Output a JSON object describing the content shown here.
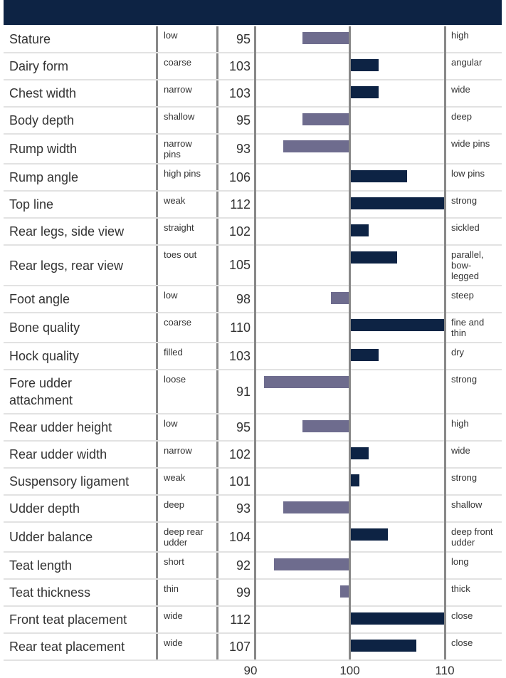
{
  "chart_data": {
    "type": "bar",
    "categories": [
      "Stature",
      "Dairy form",
      "Chest width",
      "Body depth",
      "Rump width",
      "Rump angle",
      "Top line",
      "Rear legs, side view",
      "Rear legs, rear view",
      "Foot angle",
      "Bone quality",
      "Hock quality",
      "Fore udder attachment",
      "Rear udder height",
      "Rear udder width",
      "Suspensory ligament",
      "Udder depth",
      "Udder balance",
      "Teat length",
      "Teat thickness",
      "Front teat placement",
      "Rear teat placement"
    ],
    "low_labels": [
      "low",
      "coarse",
      "narrow",
      "shallow",
      "narrow pins",
      "high pins",
      "weak",
      "straight",
      "toes out",
      "low",
      "coarse",
      "filled",
      "loose",
      "low",
      "narrow",
      "weak",
      "deep",
      "deep rear udder",
      "short",
      "thin",
      "wide",
      "wide"
    ],
    "high_labels": [
      "high",
      "angular",
      "wide",
      "deep",
      "wide pins",
      "low pins",
      "strong",
      "sickled",
      "parallel, bow-legged",
      "steep",
      "fine and thin",
      "dry",
      "strong",
      "high",
      "wide",
      "strong",
      "shallow",
      "deep front udder",
      "long",
      "thick",
      "close",
      "close"
    ],
    "values": [
      95,
      103,
      103,
      95,
      93,
      106,
      112,
      102,
      105,
      98,
      110,
      103,
      91,
      95,
      102,
      101,
      93,
      104,
      92,
      99,
      112,
      107
    ],
    "xlim": [
      90,
      110
    ],
    "xticks": [
      90,
      100,
      110
    ],
    "positive_color": "#0d2344",
    "negative_color": "#6e6c8e",
    "header_color": "#0d2344"
  }
}
